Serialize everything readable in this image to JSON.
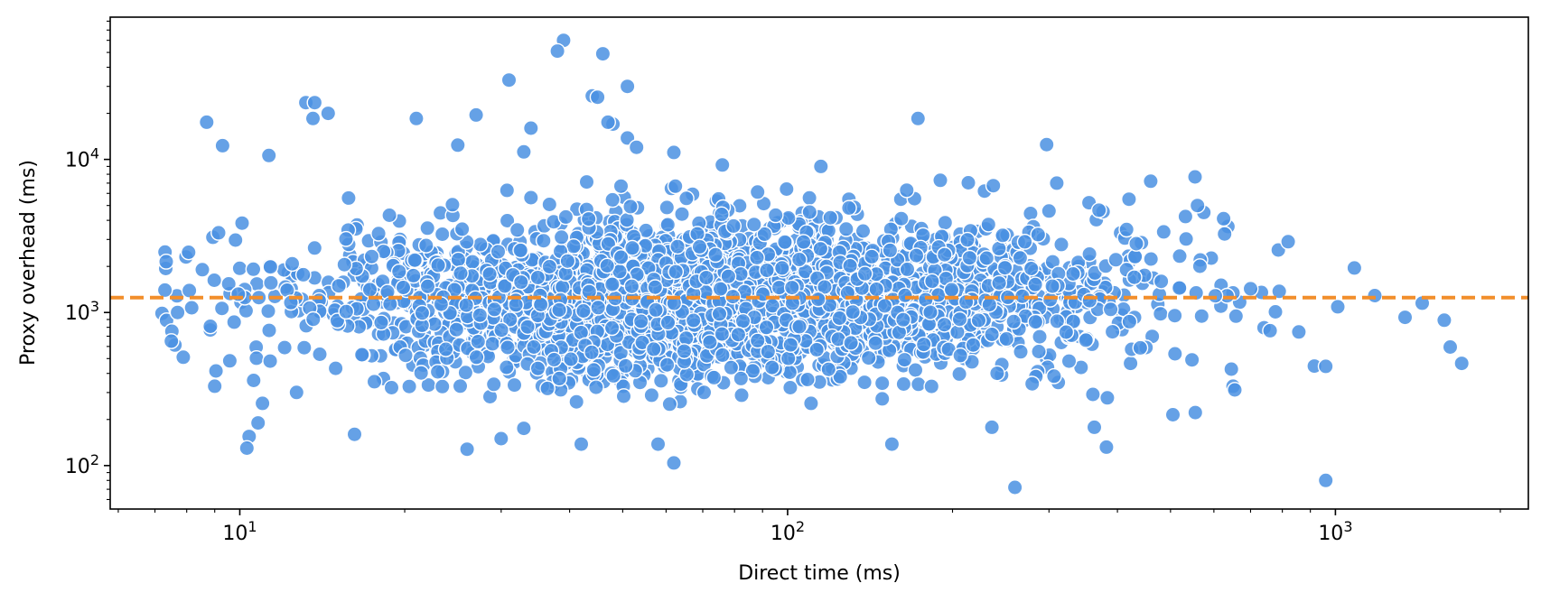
{
  "chart_data": {
    "type": "scatter",
    "title": "",
    "xlabel": "Direct time (ms)",
    "ylabel": "Proxy overhead (ms)",
    "xscale": "log",
    "yscale": "log",
    "xlim": [
      5.8,
      2250
    ],
    "ylim": [
      52,
      85000
    ],
    "xticks": [
      {
        "base": "10",
        "exp": "1",
        "value": 10
      },
      {
        "base": "10",
        "exp": "2",
        "value": 100
      },
      {
        "base": "10",
        "exp": "3",
        "value": 1000
      }
    ],
    "yticks": [
      {
        "base": "10",
        "exp": "2",
        "value": 100
      },
      {
        "base": "10",
        "exp": "3",
        "value": 1000
      },
      {
        "base": "10",
        "exp": "4",
        "value": 10000
      }
    ],
    "grid": false,
    "legend": "none",
    "marker_color": "#4a90e2",
    "marker_edge_color": "#ffffff",
    "reference_line": {
      "style": "dashed",
      "orientation": "horizontal",
      "y": 1250,
      "color": "#f28e2b"
    },
    "bulk_distribution": {
      "description_of_cloud": "dense cloud of about 3000 points",
      "x_range_ms": [
        7,
        1700
      ],
      "x_median_ms": 75,
      "y_median_ms": 1250,
      "y_typical_range_ms": [
        250,
        8000
      ]
    },
    "highlighted_points": [
      {
        "x": 39,
        "y": 60000
      },
      {
        "x": 38,
        "y": 51000
      },
      {
        "x": 46,
        "y": 49000
      },
      {
        "x": 31,
        "y": 33000
      },
      {
        "x": 51,
        "y": 30000
      },
      {
        "x": 44,
        "y": 26000
      },
      {
        "x": 45,
        "y": 25500
      },
      {
        "x": 13.2,
        "y": 23500
      },
      {
        "x": 13.7,
        "y": 23500
      },
      {
        "x": 14.5,
        "y": 20000
      },
      {
        "x": 27,
        "y": 19500
      },
      {
        "x": 13.6,
        "y": 18500
      },
      {
        "x": 21,
        "y": 18500
      },
      {
        "x": 173,
        "y": 18500
      },
      {
        "x": 8.7,
        "y": 17500
      },
      {
        "x": 48,
        "y": 17000
      },
      {
        "x": 47,
        "y": 17500
      },
      {
        "x": 34,
        "y": 16000
      },
      {
        "x": 51,
        "y": 13800
      },
      {
        "x": 9.3,
        "y": 12300
      },
      {
        "x": 25,
        "y": 12400
      },
      {
        "x": 297,
        "y": 12500
      },
      {
        "x": 11.3,
        "y": 10600
      },
      {
        "x": 62,
        "y": 11100
      },
      {
        "x": 53,
        "y": 12000
      },
      {
        "x": 33,
        "y": 11200
      },
      {
        "x": 7.3,
        "y": 1400
      },
      {
        "x": 7.5,
        "y": 650
      },
      {
        "x": 7.7,
        "y": 1000
      },
      {
        "x": 9.0,
        "y": 330
      },
      {
        "x": 10.6,
        "y": 360
      },
      {
        "x": 11.0,
        "y": 255
      },
      {
        "x": 10.8,
        "y": 190
      },
      {
        "x": 10.4,
        "y": 155
      },
      {
        "x": 10.3,
        "y": 130
      },
      {
        "x": 16.2,
        "y": 160
      },
      {
        "x": 26,
        "y": 128
      },
      {
        "x": 42,
        "y": 138
      },
      {
        "x": 58,
        "y": 138
      },
      {
        "x": 62,
        "y": 104
      },
      {
        "x": 30,
        "y": 150
      },
      {
        "x": 33,
        "y": 175
      },
      {
        "x": 155,
        "y": 138
      },
      {
        "x": 260,
        "y": 72
      },
      {
        "x": 960,
        "y": 80
      },
      {
        "x": 382,
        "y": 132
      },
      {
        "x": 236,
        "y": 178
      },
      {
        "x": 363,
        "y": 178
      },
      {
        "x": 505,
        "y": 215
      },
      {
        "x": 555,
        "y": 222
      },
      {
        "x": 655,
        "y": 312
      },
      {
        "x": 960,
        "y": 445
      },
      {
        "x": 1180,
        "y": 1290
      },
      {
        "x": 1010,
        "y": 1090
      },
      {
        "x": 1340,
        "y": 930
      },
      {
        "x": 1440,
        "y": 1150
      },
      {
        "x": 1580,
        "y": 890
      },
      {
        "x": 1620,
        "y": 595
      },
      {
        "x": 1700,
        "y": 465
      },
      {
        "x": 820,
        "y": 2900
      },
      {
        "x": 760,
        "y": 760
      },
      {
        "x": 700,
        "y": 1430
      },
      {
        "x": 625,
        "y": 4100
      },
      {
        "x": 575,
        "y": 4500
      },
      {
        "x": 560,
        "y": 5000
      },
      {
        "x": 460,
        "y": 7200
      },
      {
        "x": 420,
        "y": 5500
      },
      {
        "x": 310,
        "y": 7000
      },
      {
        "x": 300,
        "y": 4600
      },
      {
        "x": 190,
        "y": 7300
      },
      {
        "x": 165,
        "y": 6300
      },
      {
        "x": 115,
        "y": 9000
      },
      {
        "x": 76,
        "y": 9200
      }
    ]
  }
}
